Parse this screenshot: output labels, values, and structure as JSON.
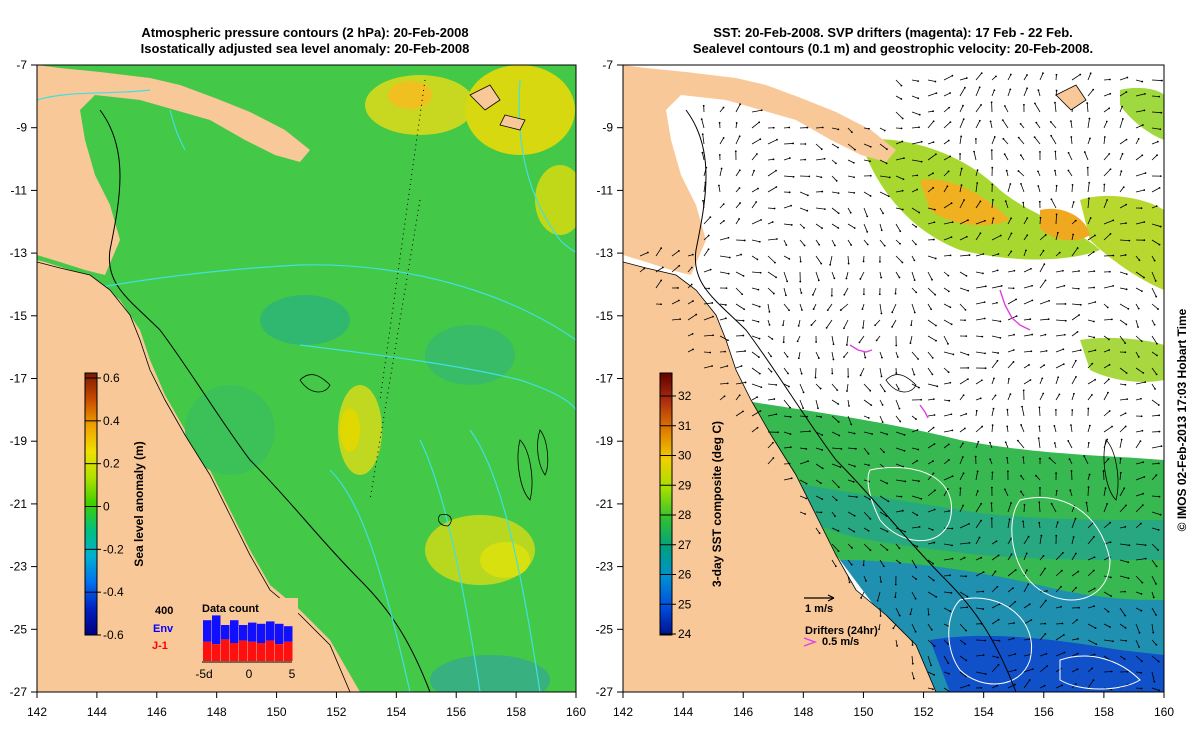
{
  "left_panel": {
    "title_line1": "Atmospheric pressure contours (2 hPa): 20-Feb-2008",
    "title_line2": "Isostatically adjusted sea level anomaly: 20-Feb-2008",
    "colorbar": {
      "label": "Sea level anomaly (m)",
      "ticks": [
        "0.6",
        "0.4",
        "0.2",
        "0",
        "-0.2",
        "-0.4",
        "-0.6"
      ],
      "colors": [
        "#7a1a00",
        "#c84a00",
        "#f0a000",
        "#f0e000",
        "#b0e000",
        "#3cd000",
        "#00c080",
        "#00b0d0",
        "#0070f0",
        "#0020c0",
        "#000080"
      ]
    },
    "data_count": {
      "title": "Data count",
      "max_label": "400",
      "env_label": "Env",
      "j1_label": "J-1",
      "x_ticks": [
        "-5d",
        "0",
        "5"
      ],
      "env_values": [
        340,
        380,
        300,
        340,
        300,
        320,
        310,
        330,
        310,
        290
      ],
      "j1_values": [
        160,
        140,
        180,
        150,
        170,
        160,
        150,
        170,
        140,
        160
      ]
    }
  },
  "right_panel": {
    "title_line1": "SST: 20-Feb-2008. SVP drifters (magenta): 17 Feb - 22 Feb.",
    "title_line2": "Sealevel contours (0.1 m) and geostrophic velocity: 20-Feb-2008.",
    "colorbar": {
      "label": "3-day SST composite (deg C)",
      "ticks": [
        "32",
        "31",
        "30",
        "29",
        "28",
        "27",
        "26",
        "25",
        "24"
      ],
      "colors": [
        "#600000",
        "#b03010",
        "#e08000",
        "#f0d000",
        "#a0e000",
        "#30c030",
        "#00a080",
        "#0090d0",
        "#0050e0",
        "#001090"
      ]
    },
    "vector_legend": "1 m/s",
    "drifter_legend_title": "Drifters (24hr)",
    "drifter_legend_speed": "0.5 m/s"
  },
  "axes": {
    "x_ticks": [
      "142",
      "144",
      "146",
      "148",
      "150",
      "152",
      "154",
      "156",
      "158",
      "160"
    ],
    "y_ticks": [
      "-7",
      "-9",
      "-11",
      "-13",
      "-15",
      "-17",
      "-19",
      "-21",
      "-23",
      "-25",
      "-27"
    ]
  },
  "credit": "© IMOS 02-Feb-2013 17:03 Hobart Time",
  "colors": {
    "land": "#f9c898",
    "ocean_green": "#40c840",
    "pressure_contour": "#40e0e0",
    "drifter": "#e040e0"
  }
}
